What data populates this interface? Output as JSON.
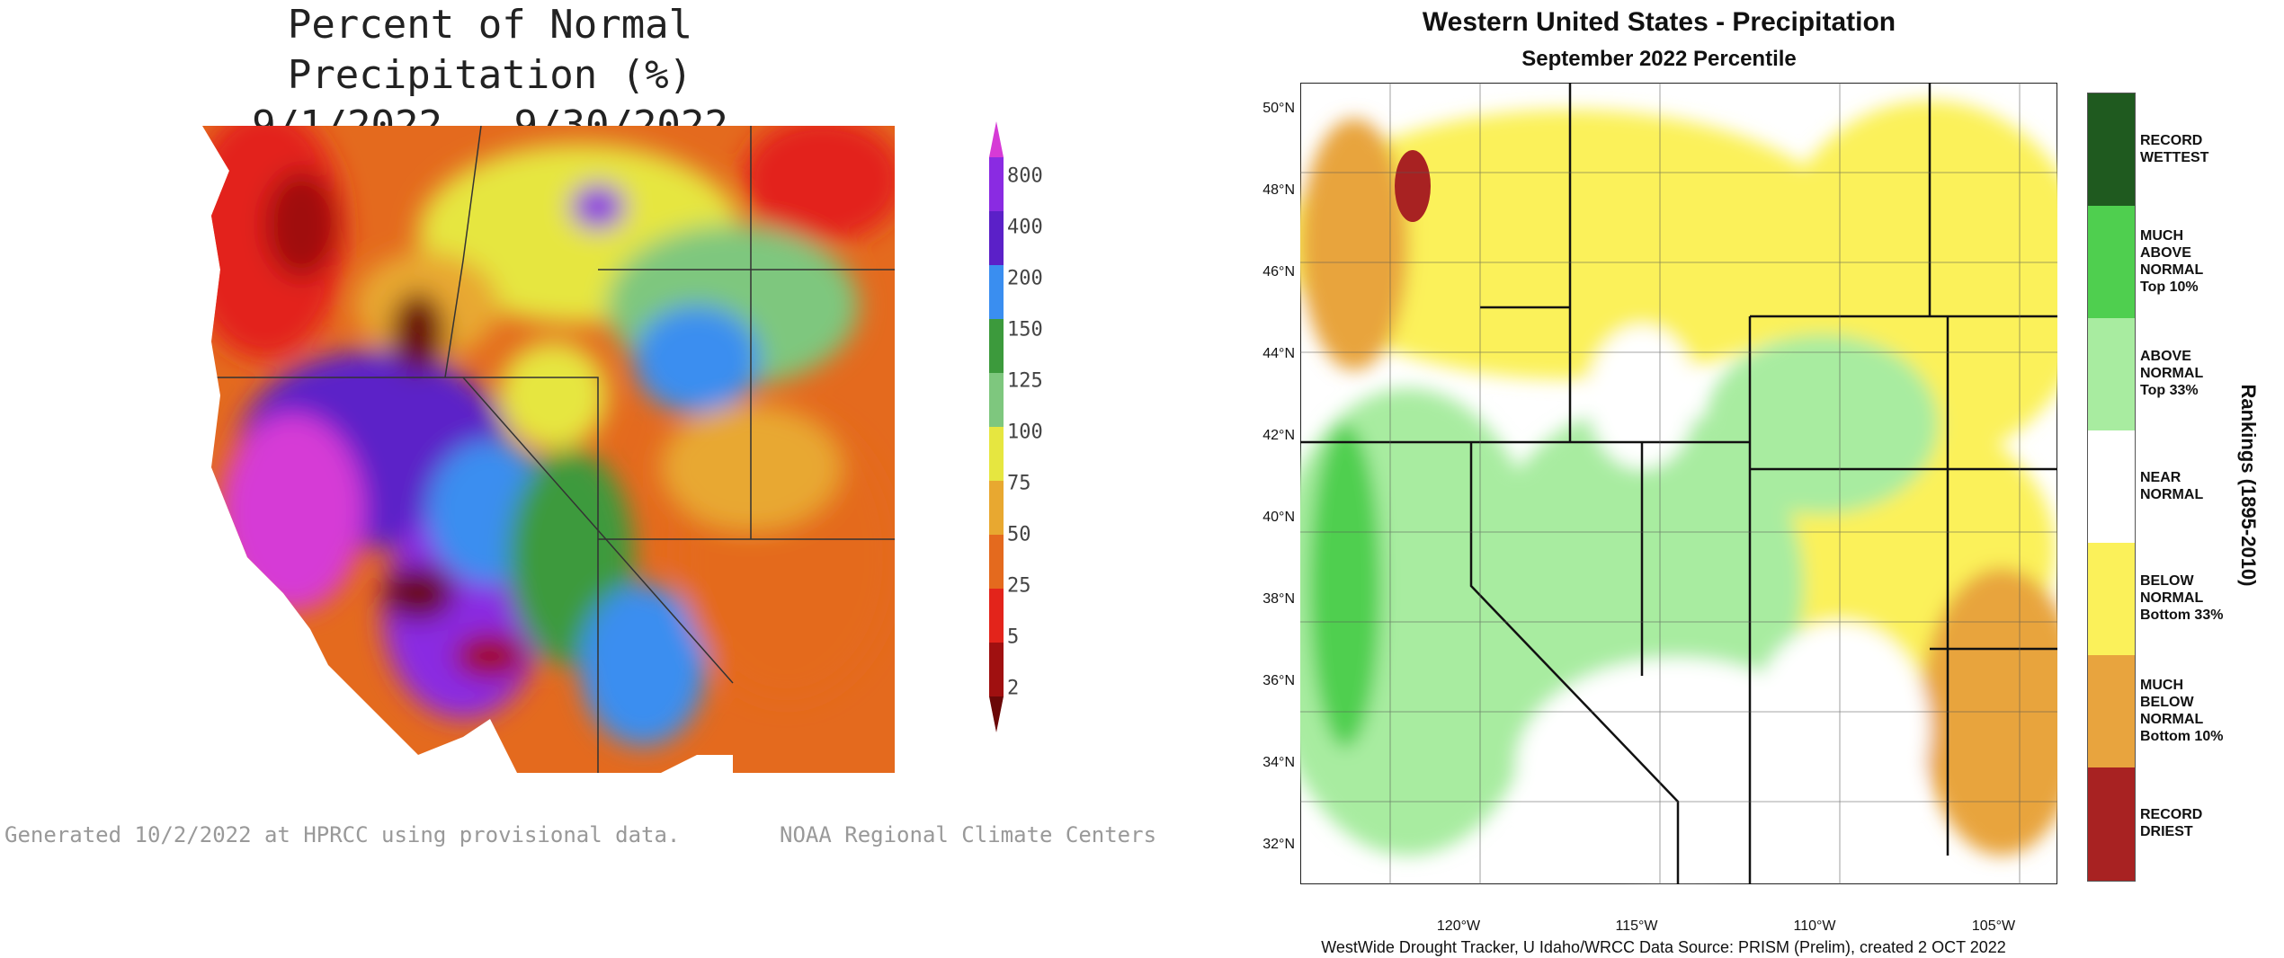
{
  "left_panel": {
    "title_line1": "Percent of Normal Precipitation (%)",
    "title_line2": "9/1/2022 - 9/30/2022",
    "legend_labels": [
      "800",
      "400",
      "200",
      "150",
      "125",
      "100",
      "75",
      "50",
      "25",
      "5",
      "2"
    ],
    "legend_colors": [
      "#d63ad6",
      "#8a2be2",
      "#5b20c8",
      "#3a8ef0",
      "#3c9a3c",
      "#7ec77e",
      "#e6e640",
      "#e8a830",
      "#e46a1e",
      "#e3241b",
      "#a01010",
      "#6b0808"
    ],
    "footer_left": "Generated 10/2/2022 at HPRCC using provisional data.",
    "footer_right": "NOAA Regional Climate Centers"
  },
  "right_panel": {
    "title": "Western United States - Precipitation",
    "subtitle": "September 2022 Percentile",
    "lat_labels": [
      "50°N",
      "48°N",
      "46°N",
      "44°N",
      "42°N",
      "40°N",
      "38°N",
      "36°N",
      "34°N",
      "32°N"
    ],
    "lon_labels": [
      "120°W",
      "115°W",
      "110°W",
      "105°W"
    ],
    "footer": "WestWide Drought Tracker, U Idaho/WRCC Data Source: PRISM (Prelim), created  2 OCT 2022",
    "legend_axis_title": "Rankings (1895-2010)",
    "legend": [
      {
        "lines": [
          "RECORD",
          "WETTEST"
        ],
        "color": "#1f5a1f"
      },
      {
        "lines": [
          "MUCH",
          "ABOVE",
          "NORMAL",
          "Top 10%"
        ],
        "color": "#4fcf4f"
      },
      {
        "lines": [
          "ABOVE",
          "NORMAL",
          "Top 33%"
        ],
        "color": "#a8eca0"
      },
      {
        "lines": [
          "NEAR",
          "NORMAL"
        ],
        "color": "#ffffff"
      },
      {
        "lines": [
          "BELOW",
          "NORMAL",
          "Bottom 33%"
        ],
        "color": "#fbf15a"
      },
      {
        "lines": [
          "MUCH",
          "BELOW",
          "NORMAL",
          "Bottom 10%"
        ],
        "color": "#e8a43e"
      },
      {
        "lines": [
          "RECORD",
          "DRIEST"
        ],
        "color": "#a82222"
      }
    ]
  }
}
